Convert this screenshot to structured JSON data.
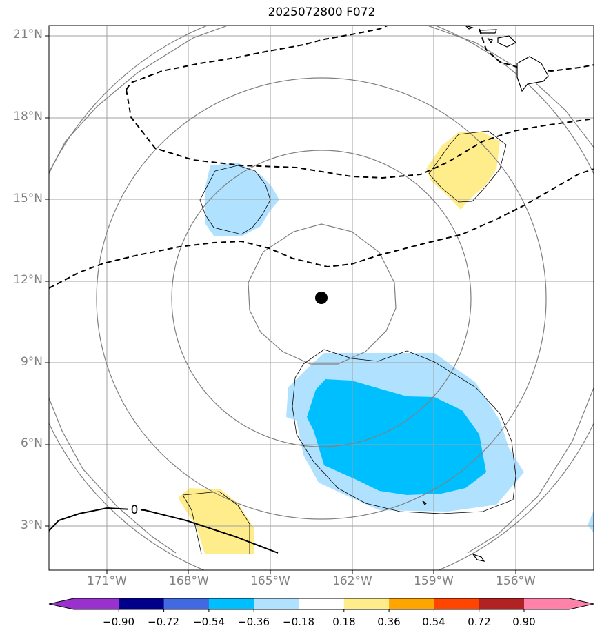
{
  "map": {
    "title": "2025072800 F072",
    "lat_labels": [
      "21°N",
      "18°N",
      "15°N",
      "12°N",
      "9°N",
      "6°N",
      "3°N"
    ],
    "lon_labels": [
      "171°W",
      "168°W",
      "165°W",
      "162°W",
      "159°W",
      "156°W"
    ],
    "contour_label": "0",
    "colors": {
      "grid": "#a0a0a0",
      "circles": "#808080",
      "light_blue": "#b0e2ff",
      "blue": "#00bfff",
      "yellow": "#ffec8b",
      "marker": "#000000"
    }
  },
  "colorbar": {
    "tick_labels": [
      "−0.90",
      "−0.72",
      "−0.54",
      "−0.36",
      "−0.18",
      "0.18",
      "0.36",
      "0.54",
      "0.72",
      "0.90"
    ],
    "colors": [
      "#9932cc",
      "#00008b",
      "#4169e1",
      "#00bfff",
      "#b0e2ff",
      "#ffffff",
      "#ffec8b",
      "#ffa500",
      "#ff4500",
      "#b22222",
      "#ff82ab"
    ]
  }
}
